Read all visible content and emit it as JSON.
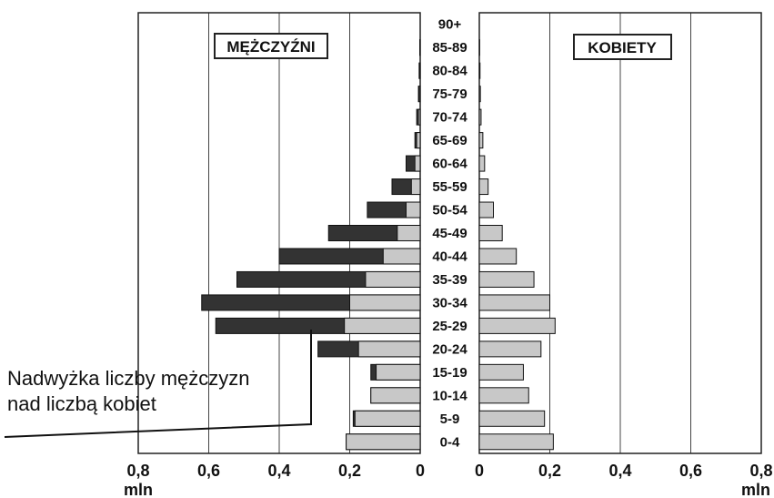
{
  "chart_data": {
    "type": "bar",
    "subtype": "population-pyramid",
    "categories": [
      "0-4",
      "5-9",
      "10-14",
      "15-19",
      "20-24",
      "25-29",
      "30-34",
      "35-39",
      "40-44",
      "45-49",
      "50-54",
      "55-59",
      "60-64",
      "65-69",
      "70-74",
      "75-79",
      "80-84",
      "85-89",
      "90+"
    ],
    "left_panel_label": "MĘŻCZYŹNI",
    "right_panel_label": "KOBIETY",
    "series": [
      {
        "panel": "left",
        "values": [
          0.21,
          0.19,
          0.14,
          0.14,
          0.29,
          0.58,
          0.62,
          0.52,
          0.4,
          0.26,
          0.15,
          0.08,
          0.04,
          0.015,
          0.01,
          0.005,
          0.003,
          0.001,
          0
        ]
      },
      {
        "panel": "right",
        "values": [
          0.21,
          0.185,
          0.14,
          0.125,
          0.175,
          0.215,
          0.2,
          0.155,
          0.105,
          0.065,
          0.04,
          0.025,
          0.015,
          0.01,
          0.005,
          0.003,
          0.002,
          0.001,
          0
        ]
      }
    ],
    "excess_color": "#333333",
    "female_color": "#c8c8c8",
    "x_ticks": [
      "0,8",
      "0,6",
      "0,4",
      "0,2",
      "0",
      "0",
      "0,2",
      "0,4",
      "0,6",
      "0,8"
    ],
    "xlim": [
      0,
      0.8
    ],
    "unit_label": "mln",
    "grid": true
  },
  "annotation": {
    "line1": "Nadwyżka liczby mężczyzn",
    "line2": "nad liczbą kobiet"
  }
}
